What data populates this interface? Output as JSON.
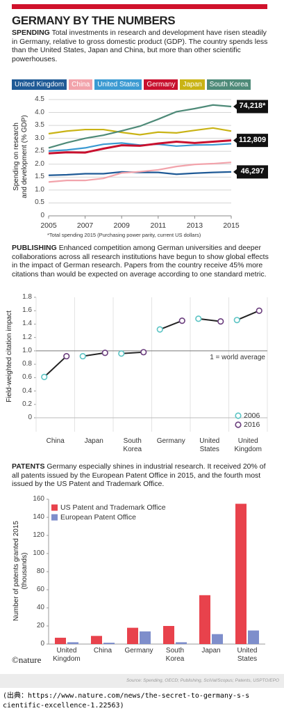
{
  "header": {
    "title": "GERMANY BY THE NUMBERS"
  },
  "chart_data": [
    {
      "type": "line",
      "title": "SPENDING",
      "subtitle": "Total investments in research and development have risen steadily in Germany, relative to gross domestic product (GDP). The country spends less than the United States, Japan and China, but more than other scientific powerhouses.",
      "ylabel": "Spending on research\nand development (% GDP)",
      "x": [
        2005,
        2006,
        2007,
        2008,
        2009,
        2010,
        2011,
        2012,
        2013,
        2014,
        2015
      ],
      "xlim": [
        2005,
        2015
      ],
      "xticks": [
        2005,
        2007,
        2009,
        2011,
        2013,
        2015
      ],
      "ylim": [
        0,
        4.5
      ],
      "yticks": [
        0,
        0.5,
        {
          "value": 1,
          "label": "1.0"
        },
        1.5,
        {
          "value": 2,
          "label": "2.0"
        },
        2.5,
        {
          "value": 3,
          "label": "3.0"
        },
        3.5,
        {
          "value": 4,
          "label": "4.0"
        },
        4.5
      ],
      "grid": true,
      "series": [
        {
          "name": "United Kingdom",
          "color": "#1f5a96",
          "values": [
            1.57,
            1.59,
            1.63,
            1.63,
            1.7,
            1.68,
            1.68,
            1.61,
            1.65,
            1.68,
            1.7
          ],
          "end_label": "46,297"
        },
        {
          "name": "China",
          "color": "#f2a3ab",
          "values": [
            1.31,
            1.37,
            1.37,
            1.45,
            1.66,
            1.71,
            1.78,
            1.91,
            1.99,
            2.02,
            2.07
          ]
        },
        {
          "name": "United States",
          "color": "#3b9ad2",
          "values": [
            2.51,
            2.55,
            2.63,
            2.77,
            2.82,
            2.74,
            2.77,
            2.7,
            2.74,
            2.75,
            2.79
          ]
        },
        {
          "name": "Germany",
          "color": "#c8102e",
          "values": [
            2.42,
            2.46,
            2.45,
            2.6,
            2.73,
            2.71,
            2.8,
            2.87,
            2.82,
            2.87,
            2.92
          ],
          "end_label": "112,809"
        },
        {
          "name": "Japan",
          "color": "#c9b315",
          "values": [
            3.18,
            3.28,
            3.34,
            3.34,
            3.23,
            3.14,
            3.24,
            3.21,
            3.31,
            3.4,
            3.28
          ]
        },
        {
          "name": "South Korea",
          "color": "#4e8a78",
          "values": [
            2.63,
            2.83,
            3.0,
            3.12,
            3.29,
            3.47,
            3.74,
            4.03,
            4.15,
            4.29,
            4.23
          ],
          "end_label": "74,218*"
        }
      ],
      "note": "*Total spending 2015 (Purchasing power parity, current US dollars)"
    },
    {
      "type": "dumbbell",
      "title": "PUBLISHING",
      "subtitle": "Enhanced competition among German universities and deeper collaborations across all research institutions have begun to show global effects in the impact of German research. Papers from the country receive 45% more citations than would be expected on average according to one standard metric.",
      "ylabel": "Field-weighted citation impact",
      "categories": [
        "China",
        "Japan",
        "South\nKorea",
        "Germany",
        "United\nStates",
        "United\nKingdom"
      ],
      "ylim": [
        0,
        1.8
      ],
      "yticks": [
        0,
        0.2,
        0.4,
        0.6,
        0.8,
        {
          "value": 1,
          "label": "1.0"
        },
        1.2,
        1.4,
        1.6,
        1.8
      ],
      "reference_line": {
        "value": 1,
        "label": "1 = world average"
      },
      "series": [
        {
          "name": "2006",
          "color": "#5bc4c4",
          "values": [
            0.61,
            0.92,
            0.96,
            1.32,
            1.48,
            1.46
          ]
        },
        {
          "name": "2016",
          "color": "#6a3d7d",
          "values": [
            0.92,
            0.97,
            0.98,
            1.45,
            1.44,
            1.6
          ]
        }
      ]
    },
    {
      "type": "bar",
      "title": "PATENTS",
      "subtitle": "Germany especially shines in industrial research. It received 20% of all patents issued by the European Patent Office in 2015, and the fourth most issued by the US Patent and Trademark Office.",
      "ylabel": "Number of patents granted 2015\n(thousands)",
      "categories": [
        "United\nKingdom",
        "China",
        "Germany",
        "South\nKorea",
        "Japan",
        "United\nStates"
      ],
      "ylim": [
        0,
        160
      ],
      "yticks": [
        0,
        20,
        40,
        60,
        80,
        100,
        120,
        140,
        160
      ],
      "series": [
        {
          "name": "US Patent and Trademark Office",
          "color": "#e8424c",
          "values": [
            7,
            9,
            18,
            20,
            54,
            155
          ]
        },
        {
          "name": "European Patent Office",
          "color": "#7e8ecb",
          "values": [
            2,
            1.5,
            14,
            2,
            11,
            15
          ]
        }
      ]
    }
  ],
  "footer": {
    "logo": "©nature",
    "source": "Source: Spending, OECD; Publishing, SciVal/Scopus; Patents, USPTO/EPO",
    "citation": "(出典：https://www.nature.com/news/the-secret-to-germany-s-scientific-excellence-1.22563)"
  }
}
